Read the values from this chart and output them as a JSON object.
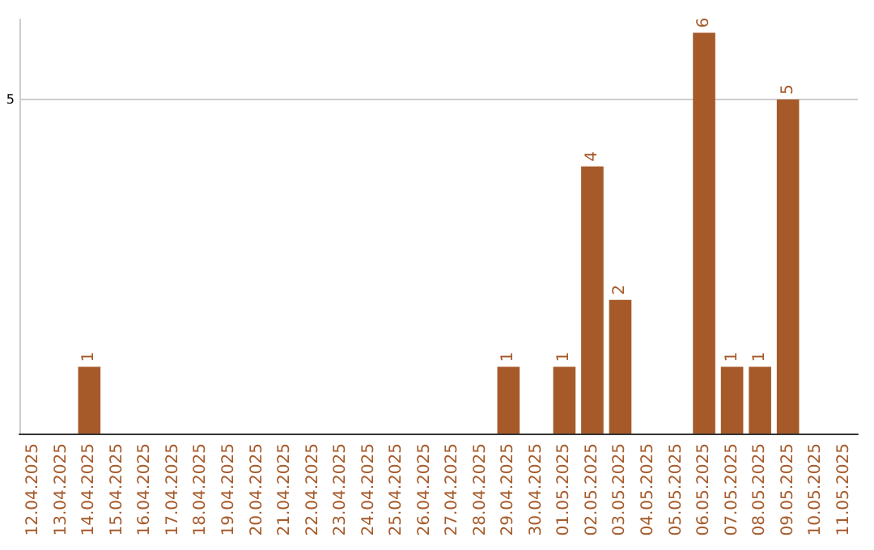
{
  "chart_data": {
    "type": "bar",
    "categories": [
      "12.04.2025",
      "13.04.2025",
      "14.04.2025",
      "15.04.2025",
      "16.04.2025",
      "17.04.2025",
      "18.04.2025",
      "19.04.2025",
      "20.04.2025",
      "21.04.2025",
      "22.04.2025",
      "23.04.2025",
      "24.04.2025",
      "25.04.2025",
      "26.04.2025",
      "27.04.2025",
      "28.04.2025",
      "29.04.2025",
      "30.04.2025",
      "01.05.2025",
      "02.05.2025",
      "03.05.2025",
      "04.05.2025",
      "05.05.2025",
      "06.05.2025",
      "07.05.2025",
      "08.05.2025",
      "09.05.2025",
      "10.05.2025",
      "11.05.2025"
    ],
    "values": [
      0,
      0,
      1,
      0,
      0,
      0,
      0,
      0,
      0,
      0,
      0,
      0,
      0,
      0,
      0,
      0,
      0,
      1,
      0,
      1,
      4,
      2,
      0,
      0,
      6,
      1,
      1,
      5,
      0,
      0
    ],
    "value_labels": [
      null,
      null,
      "1",
      null,
      null,
      null,
      null,
      null,
      null,
      null,
      null,
      null,
      null,
      null,
      null,
      null,
      null,
      "1",
      null,
      "1",
      "4",
      "2",
      null,
      null,
      "6",
      "1",
      "1",
      "5",
      null,
      null
    ],
    "color": "#a65a2a",
    "ylim": [
      0,
      6.2
    ],
    "yticks": [
      5
    ],
    "grid": "y"
  }
}
